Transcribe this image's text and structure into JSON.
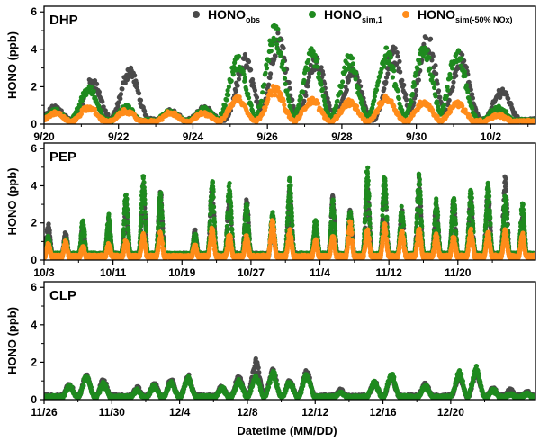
{
  "colors": {
    "obs": "#4a4a4a",
    "sim1": "#1f8a1f",
    "sim50": "#ff8c1a"
  },
  "legend": [
    {
      "key": "obs",
      "base": "HONO",
      "sub": "obs"
    },
    {
      "key": "sim1",
      "base": "HONO",
      "sub": "sim,1"
    },
    {
      "key": "sim50",
      "base": "HONO",
      "sub": "sim(-50% NOx)"
    }
  ],
  "xlabel": "Datetime (MM/DD)",
  "chart_data": [
    {
      "type": "scatter",
      "site": "DHP",
      "ylabel": "HONO (ppb)",
      "ylim": [
        0,
        6.3
      ],
      "yticks": [
        0,
        2,
        4,
        6
      ],
      "xlim": [
        0,
        13.2
      ],
      "xticks": [
        0,
        2,
        4,
        6,
        8,
        10,
        12
      ],
      "xticklabels": [
        "9/20",
        "9/22",
        "9/24",
        "9/26",
        "9/28",
        "9/30",
        "10/2"
      ],
      "series": [
        {
          "key": "obs",
          "name": "HONOobs",
          "peaks": [
            [
              0.3,
              0.9
            ],
            [
              1.3,
              2.3
            ],
            [
              2.3,
              2.9
            ],
            [
              3.4,
              0.7
            ],
            [
              4.3,
              0.9
            ],
            [
              5.4,
              3.4
            ],
            [
              6.3,
              4.6
            ],
            [
              7.3,
              3.5
            ],
            [
              8.3,
              2.8
            ],
            [
              9.4,
              3.8
            ],
            [
              10.3,
              4.5
            ],
            [
              11.2,
              3.5
            ],
            [
              12.3,
              1.8
            ]
          ],
          "base": 0.25
        },
        {
          "key": "sim1",
          "name": "HONOsim,1",
          "peaks": [
            [
              0.3,
              0.7
            ],
            [
              1.2,
              1.9
            ],
            [
              2.2,
              0.9
            ],
            [
              3.4,
              0.7
            ],
            [
              4.3,
              0.8
            ],
            [
              5.2,
              3.4
            ],
            [
              6.2,
              4.9
            ],
            [
              7.2,
              3.7
            ],
            [
              8.2,
              3.4
            ],
            [
              9.2,
              3.8
            ],
            [
              10.2,
              4.1
            ],
            [
              11.1,
              3.8
            ],
            [
              12.2,
              0.9
            ]
          ],
          "base": 0.2
        },
        {
          "key": "sim50",
          "name": "HONOsim(-50% NOx)",
          "peaks": [
            [
              0.3,
              0.6
            ],
            [
              1.2,
              0.9
            ],
            [
              2.2,
              0.7
            ],
            [
              3.4,
              0.6
            ],
            [
              4.3,
              0.6
            ],
            [
              5.2,
              1.4
            ],
            [
              6.2,
              1.9
            ],
            [
              7.2,
              1.3
            ],
            [
              8.2,
              1.2
            ],
            [
              9.2,
              1.4
            ],
            [
              10.2,
              1.2
            ],
            [
              11.1,
              1.1
            ],
            [
              12.2,
              0.5
            ]
          ],
          "base": 0.15
        }
      ]
    },
    {
      "type": "scatter",
      "site": "PEP",
      "ylabel": "HONO (ppb)",
      "ylim": [
        0,
        6.3
      ],
      "yticks": [
        0,
        2,
        4,
        6
      ],
      "xlim": [
        0,
        57
      ],
      "xticks": [
        0,
        8,
        16,
        24,
        32,
        40,
        48
      ],
      "xticklabels": [
        "10/3",
        "10/11",
        "10/19",
        "10/27",
        "11/4",
        "11/12",
        "11/20"
      ],
      "series": [
        {
          "key": "obs",
          "name": "HONOobs",
          "peaks": [
            [
              0.5,
              1.8
            ],
            [
              2.5,
              1.4
            ],
            [
              4.5,
              1.7
            ],
            [
              7.5,
              2.0
            ],
            [
              9.5,
              3.0
            ],
            [
              11.5,
              3.8
            ],
            [
              13.5,
              3.5
            ],
            [
              17.5,
              1.5
            ],
            [
              19.5,
              3.7
            ],
            [
              21.5,
              3.4
            ],
            [
              23.5,
              3.1
            ],
            [
              26.5,
              2.0
            ],
            [
              28.5,
              3.6
            ],
            [
              31.5,
              1.8
            ],
            [
              33.5,
              3.2
            ],
            [
              35.5,
              2.5
            ],
            [
              37.5,
              3.9
            ],
            [
              39.5,
              3.8
            ],
            [
              41.5,
              2.5
            ],
            [
              43.5,
              4.1
            ],
            [
              45.5,
              2.9
            ],
            [
              47.5,
              3.1
            ],
            [
              49.5,
              3.2
            ],
            [
              51.5,
              3.7
            ],
            [
              53.5,
              4.3
            ],
            [
              55.5,
              2.5
            ]
          ],
          "base": 0.3
        },
        {
          "key": "sim1",
          "name": "HONOsim,1",
          "peaks": [
            [
              0.5,
              1.2
            ],
            [
              2.5,
              1.1
            ],
            [
              4.5,
              2.0
            ],
            [
              7.5,
              2.2
            ],
            [
              9.5,
              3.4
            ],
            [
              11.5,
              4.2
            ],
            [
              13.5,
              3.4
            ],
            [
              17.5,
              1.3
            ],
            [
              19.5,
              4.0
            ],
            [
              21.5,
              3.9
            ],
            [
              23.5,
              2.9
            ],
            [
              26.5,
              2.4
            ],
            [
              28.5,
              4.1
            ],
            [
              31.5,
              2.1
            ],
            [
              33.5,
              3.0
            ],
            [
              35.5,
              2.6
            ],
            [
              37.5,
              4.7
            ],
            [
              39.5,
              4.4
            ],
            [
              41.5,
              2.7
            ],
            [
              43.5,
              4.3
            ],
            [
              45.5,
              3.1
            ],
            [
              47.5,
              3.3
            ],
            [
              49.5,
              3.5
            ],
            [
              51.5,
              3.9
            ],
            [
              53.5,
              3.2
            ],
            [
              55.5,
              2.9
            ]
          ],
          "base": 0.3
        },
        {
          "key": "sim50",
          "name": "HONOsim(-50% NOx)",
          "peaks": [
            [
              0.5,
              0.8
            ],
            [
              2.5,
              0.9
            ],
            [
              4.5,
              0.7
            ],
            [
              7.5,
              0.8
            ],
            [
              9.5,
              1.0
            ],
            [
              11.5,
              1.3
            ],
            [
              13.5,
              1.4
            ],
            [
              17.5,
              0.8
            ],
            [
              19.5,
              1.6
            ],
            [
              21.5,
              1.3
            ],
            [
              23.5,
              1.2
            ],
            [
              26.5,
              2.0
            ],
            [
              28.5,
              1.5
            ],
            [
              31.5,
              1.0
            ],
            [
              33.5,
              1.2
            ],
            [
              35.5,
              1.9
            ],
            [
              37.5,
              1.6
            ],
            [
              39.5,
              1.8
            ],
            [
              41.5,
              1.5
            ],
            [
              43.5,
              1.6
            ],
            [
              45.5,
              1.3
            ],
            [
              47.5,
              1.2
            ],
            [
              49.5,
              1.5
            ],
            [
              51.5,
              1.4
            ],
            [
              53.5,
              1.5
            ],
            [
              55.5,
              1.3
            ]
          ],
          "base": 0.2
        }
      ]
    },
    {
      "type": "scatter",
      "site": "CLP",
      "ylabel": "HONO (ppb)",
      "ylim": [
        0,
        6.3
      ],
      "yticks": [
        0,
        2,
        4,
        6
      ],
      "xlim": [
        0,
        29
      ],
      "xticks": [
        0,
        4,
        8,
        12,
        16,
        20,
        24
      ],
      "xticklabels": [
        "11/26",
        "11/30",
        "12/4",
        "12/8",
        "12/12",
        "12/16",
        "12/20"
      ],
      "series": [
        {
          "key": "obs",
          "name": "HONOobs",
          "peaks": [
            [
              1.5,
              0.8
            ],
            [
              2.5,
              1.3
            ],
            [
              3.5,
              1.0
            ],
            [
              5.5,
              0.6
            ],
            [
              6.5,
              0.8
            ],
            [
              7.5,
              1.0
            ],
            [
              8.5,
              1.2
            ],
            [
              10.5,
              0.7
            ],
            [
              11.5,
              1.2
            ],
            [
              12.5,
              2.0
            ],
            [
              13.5,
              1.5
            ],
            [
              14.5,
              1.0
            ],
            [
              15.5,
              1.5
            ],
            [
              17.5,
              0.5
            ],
            [
              19.5,
              0.9
            ],
            [
              20.5,
              1.2
            ],
            [
              22.5,
              0.8
            ],
            [
              24.5,
              1.2
            ],
            [
              25.5,
              1.4
            ],
            [
              26.5,
              0.6
            ],
            [
              27.5,
              0.5
            ],
            [
              28.5,
              0.4
            ]
          ],
          "base": 0.2
        },
        {
          "key": "sim1",
          "name": "HONOsim,1",
          "peaks": [
            [
              1.5,
              0.7
            ],
            [
              2.5,
              1.2
            ],
            [
              3.5,
              0.8
            ],
            [
              5.5,
              0.5
            ],
            [
              6.5,
              0.7
            ],
            [
              7.5,
              0.9
            ],
            [
              8.5,
              1.1
            ],
            [
              10.5,
              0.6
            ],
            [
              11.5,
              1.0
            ],
            [
              12.5,
              1.2
            ],
            [
              13.5,
              1.4
            ],
            [
              14.5,
              0.9
            ],
            [
              15.5,
              1.3
            ],
            [
              17.5,
              0.4
            ],
            [
              19.5,
              0.9
            ],
            [
              20.5,
              1.3
            ],
            [
              22.5,
              0.7
            ],
            [
              24.5,
              1.4
            ],
            [
              25.5,
              1.6
            ],
            [
              26.5,
              0.5
            ],
            [
              27.5,
              0.3
            ],
            [
              28.5,
              0.3
            ]
          ],
          "base": 0.15
        }
      ]
    }
  ]
}
